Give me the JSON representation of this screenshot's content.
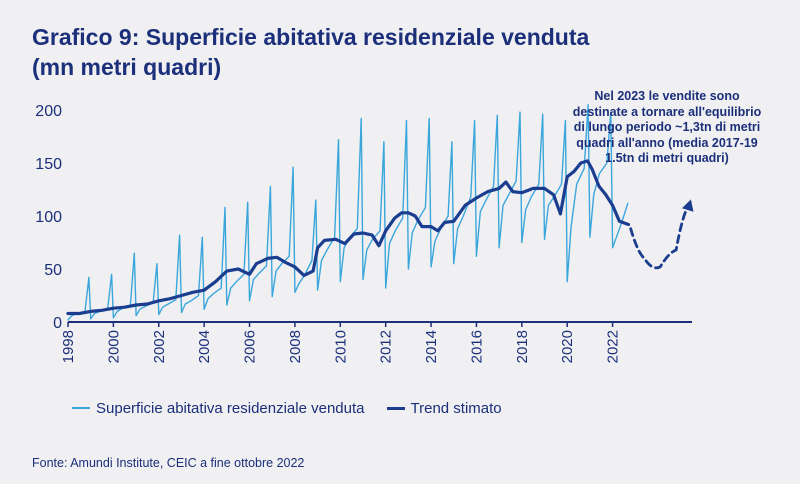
{
  "chart_data": {
    "type": "line",
    "title_line1": "Grafico 9: Superficie abitativa residenziale venduta",
    "title_line2": "(mn metri quadri)",
    "xlabel": "",
    "ylabel": "",
    "xlim": [
      1998,
      2025.5
    ],
    "ylim": [
      0,
      200
    ],
    "x_ticks": [
      1998,
      2000,
      2002,
      2004,
      2006,
      2008,
      2010,
      2012,
      2014,
      2016,
      2018,
      2020,
      2022
    ],
    "y_ticks": [
      0,
      50,
      100,
      150,
      200
    ],
    "grid": false,
    "legend_position": "bottom",
    "series": [
      {
        "name": "Superficie abitativa residenziale venduta",
        "color": "#3aa6dc",
        "description": "monthly data with strong seasonal peaks in December",
        "x": [
          1998.0,
          1998.17,
          1998.42,
          1998.75,
          1998.92,
          1999.0,
          1999.17,
          1999.42,
          1999.75,
          1999.92,
          2000.0,
          2000.17,
          2000.42,
          2000.75,
          2000.92,
          2001.0,
          2001.17,
          2001.42,
          2001.75,
          2001.92,
          2002.0,
          2002.17,
          2002.42,
          2002.75,
          2002.92,
          2003.0,
          2003.17,
          2003.42,
          2003.75,
          2003.92,
          2004.0,
          2004.17,
          2004.42,
          2004.75,
          2004.92,
          2005.0,
          2005.17,
          2005.42,
          2005.75,
          2005.92,
          2006.0,
          2006.17,
          2006.42,
          2006.75,
          2006.92,
          2007.0,
          2007.17,
          2007.42,
          2007.75,
          2007.92,
          2008.0,
          2008.17,
          2008.42,
          2008.75,
          2008.92,
          2009.0,
          2009.17,
          2009.42,
          2009.75,
          2009.92,
          2010.0,
          2010.17,
          2010.42,
          2010.75,
          2010.92,
          2011.0,
          2011.17,
          2011.42,
          2011.75,
          2011.92,
          2012.0,
          2012.17,
          2012.42,
          2012.75,
          2012.92,
          2013.0,
          2013.17,
          2013.42,
          2013.75,
          2013.92,
          2014.0,
          2014.17,
          2014.42,
          2014.75,
          2014.92,
          2015.0,
          2015.17,
          2015.42,
          2015.75,
          2015.92,
          2016.0,
          2016.17,
          2016.42,
          2016.75,
          2016.92,
          2017.0,
          2017.17,
          2017.42,
          2017.75,
          2017.92,
          2018.0,
          2018.17,
          2018.42,
          2018.75,
          2018.92,
          2019.0,
          2019.17,
          2019.42,
          2019.75,
          2019.92,
          2020.0,
          2020.17,
          2020.42,
          2020.75,
          2020.92,
          2021.0,
          2021.17,
          2021.42,
          2021.75,
          2021.92,
          2022.0,
          2022.17,
          2022.42,
          2022.67
        ],
        "values": [
          2,
          6,
          8,
          10,
          42,
          3,
          8,
          10,
          13,
          45,
          4,
          10,
          13,
          16,
          65,
          6,
          12,
          15,
          18,
          55,
          7,
          14,
          17,
          21,
          82,
          9,
          17,
          20,
          25,
          80,
          12,
          22,
          27,
          32,
          108,
          16,
          32,
          38,
          45,
          113,
          20,
          40,
          46,
          53,
          128,
          24,
          48,
          55,
          62,
          146,
          28,
          36,
          44,
          58,
          115,
          30,
          58,
          68,
          80,
          172,
          38,
          70,
          80,
          88,
          192,
          40,
          68,
          78,
          86,
          170,
          32,
          74,
          86,
          98,
          190,
          50,
          84,
          96,
          108,
          192,
          52,
          76,
          88,
          100,
          170,
          55,
          88,
          100,
          118,
          190,
          62,
          104,
          115,
          128,
          195,
          70,
          110,
          120,
          133,
          198,
          75,
          106,
          118,
          130,
          196,
          78,
          110,
          118,
          130,
          190,
          38,
          90,
          130,
          145,
          205,
          80,
          120,
          140,
          150,
          198,
          70,
          80,
          95,
          112
        ]
      },
      {
        "name": "Trend stimato",
        "color": "#1b3d8f",
        "x": [
          1998.0,
          1998.5,
          1999.0,
          1999.5,
          2000.0,
          2000.5,
          2001.0,
          2001.5,
          2002.0,
          2002.5,
          2003.0,
          2003.5,
          2004.0,
          2004.5,
          2005.0,
          2005.5,
          2006.0,
          2006.3,
          2006.8,
          2007.2,
          2007.6,
          2008.0,
          2008.4,
          2008.8,
          2009.0,
          2009.3,
          2009.8,
          2010.2,
          2010.6,
          2011.0,
          2011.4,
          2011.7,
          2012.0,
          2012.4,
          2012.7,
          2013.0,
          2013.3,
          2013.6,
          2014.0,
          2014.3,
          2014.6,
          2015.0,
          2015.5,
          2016.0,
          2016.5,
          2017.0,
          2017.3,
          2017.6,
          2018.0,
          2018.5,
          2019.0,
          2019.4,
          2019.7,
          2020.0,
          2020.3,
          2020.6,
          2020.9,
          2021.1,
          2021.4,
          2021.7,
          2022.0,
          2022.3,
          2022.7
        ],
        "values": [
          8,
          8,
          10,
          11,
          13,
          14,
          16,
          17,
          20,
          22,
          25,
          28,
          30,
          38,
          48,
          50,
          45,
          55,
          60,
          61,
          56,
          52,
          44,
          48,
          70,
          77,
          78,
          74,
          83,
          84,
          82,
          72,
          86,
          98,
          103,
          103,
          100,
          90,
          90,
          86,
          94,
          95,
          110,
          117,
          123,
          126,
          132,
          123,
          122,
          126,
          126,
          120,
          102,
          137,
          142,
          150,
          152,
          144,
          128,
          120,
          110,
          95,
          92
        ]
      }
    ],
    "projection": {
      "description": "dashed arrow projecting a dip and recovery after 2022",
      "x": [
        2022.8,
        2023.4,
        2024.1,
        2024.8,
        2025.4
      ],
      "values": [
        88,
        60,
        52,
        68,
        112
      ]
    },
    "annotation": "Nel 2023 le vendite sono destinate a tornare all'equilibrio di lungo periodo ~1,3tn di metri quadri all'anno (media 2017-19 1.5tn di metri quadri)"
  },
  "legend": {
    "item1": "Superficie abitativa residenziale venduta",
    "item2": "Trend stimato"
  },
  "source": "Fonte: Amundi Institute, CEIC a fine ottobre 2022",
  "colors": {
    "title": "#1b2f7a",
    "axis": "#1b2f7a",
    "series_light": "#3aa6dc",
    "series_dark": "#1b3d8f"
  }
}
